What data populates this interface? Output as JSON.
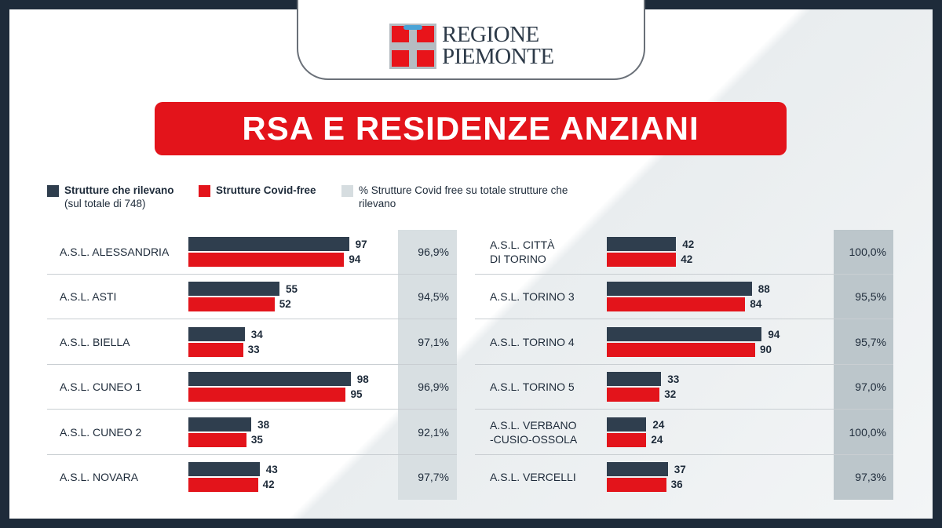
{
  "logo": {
    "line1": "REGIONE",
    "line2": "PIEMONTE"
  },
  "colors": {
    "frame": "#1e2b3a",
    "dark": "#2f3e4e",
    "red": "#e3141b",
    "pct_bg": "#d6dde0"
  },
  "chart_data": {
    "type": "bar",
    "title": "RSA E RESIDENZE ANZIANI",
    "legend": [
      {
        "name": "Strutture che rilevano",
        "note": "(sul totale di 748)",
        "color": "#2f3e4e"
      },
      {
        "name": "Strutture Covid-free",
        "color": "#e3141b"
      },
      {
        "name": "% Strutture Covid free su totale strutture che rilevano",
        "color": "#d6dde0"
      }
    ],
    "orientation": "horizontal",
    "groups": [
      {
        "category": "A.S.L. ALESSANDRIA",
        "rilevano": 97,
        "covid_free": 94,
        "pct": "96,9%"
      },
      {
        "category": "A.S.L. ASTI",
        "rilevano": 55,
        "covid_free": 52,
        "pct": "94,5%"
      },
      {
        "category": "A.S.L. BIELLA",
        "rilevano": 34,
        "covid_free": 33,
        "pct": "97,1%"
      },
      {
        "category": "A.S.L. CUNEO 1",
        "rilevano": 98,
        "covid_free": 95,
        "pct": "96,9%"
      },
      {
        "category": "A.S.L. CUNEO 2",
        "rilevano": 38,
        "covid_free": 35,
        "pct": "92,1%"
      },
      {
        "category": "A.S.L. NOVARA",
        "rilevano": 43,
        "covid_free": 42,
        "pct": "97,7%"
      },
      {
        "category": "A.S.L. CITTÀ\nDI TORINO",
        "rilevano": 42,
        "covid_free": 42,
        "pct": "100,0%"
      },
      {
        "category": "A.S.L. TORINO 3",
        "rilevano": 88,
        "covid_free": 84,
        "pct": "95,5%"
      },
      {
        "category": "A.S.L. TORINO 4",
        "rilevano": 94,
        "covid_free": 90,
        "pct": "95,7%"
      },
      {
        "category": "A.S.L. TORINO 5",
        "rilevano": 33,
        "covid_free": 32,
        "pct": "97,0%"
      },
      {
        "category": "A.S.L. VERBANO\n-CUSIO-OSSOLA",
        "rilevano": 24,
        "covid_free": 24,
        "pct": "100,0%"
      },
      {
        "category": "A.S.L. VERCELLI",
        "rilevano": 37,
        "covid_free": 36,
        "pct": "97,3%"
      }
    ]
  }
}
